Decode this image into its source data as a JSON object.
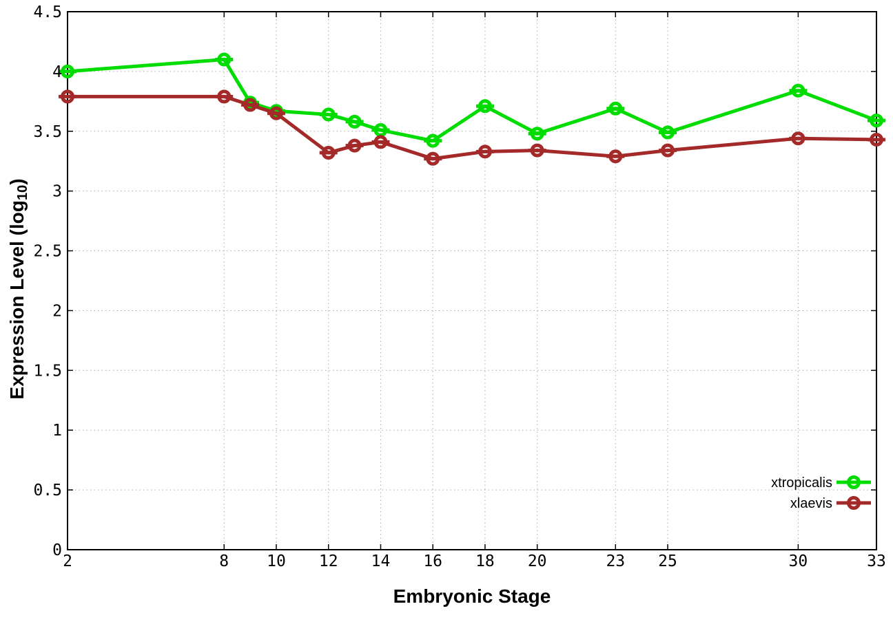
{
  "chart_data": {
    "type": "line",
    "title": "",
    "xlabel": "Embryonic Stage",
    "ylabel": "Expression Level (log10)",
    "ylabel_parts": {
      "main": "Expression Level (log",
      "sub": "10",
      "close": ")"
    },
    "xlim": [
      2,
      33
    ],
    "ylim": [
      0,
      4.5
    ],
    "xticks": [
      2,
      8,
      10,
      12,
      14,
      16,
      18,
      20,
      23,
      25,
      30,
      33
    ],
    "xtick_labels": [
      "2",
      "8",
      "10",
      "12",
      "14",
      "16",
      "18",
      "20",
      "23",
      "25",
      "30",
      "33"
    ],
    "yticks": [
      0,
      0.5,
      1,
      1.5,
      2,
      2.5,
      3,
      3.5,
      4,
      4.5
    ],
    "ytick_labels": [
      "0",
      "0.5",
      "1",
      "1.5",
      "2",
      "2.5",
      "3",
      "3.5",
      "4",
      "4.5"
    ],
    "grid": true,
    "legend_position": "inside-bottom-right",
    "x": [
      2,
      8,
      9,
      10,
      12,
      13,
      14,
      16,
      18,
      20,
      23,
      25,
      30,
      33
    ],
    "series": [
      {
        "name": "xtropicalis",
        "color": "#00dc00",
        "marker": "open-circle-with-errorbar-cap",
        "values": [
          4.0,
          4.1,
          3.74,
          3.67,
          3.64,
          3.58,
          3.51,
          3.42,
          3.71,
          3.48,
          3.69,
          3.49,
          3.84,
          3.59
        ]
      },
      {
        "name": "xlaevis",
        "color": "#a42a2a",
        "marker": "open-circle-with-errorbar-cap",
        "values": [
          3.79,
          3.79,
          3.72,
          3.65,
          3.32,
          3.38,
          3.41,
          3.27,
          3.33,
          3.34,
          3.29,
          3.34,
          3.44,
          3.43
        ]
      }
    ],
    "colors": {
      "grid": "#a9a9a9",
      "border": "#000000",
      "background": "#ffffff"
    }
  }
}
